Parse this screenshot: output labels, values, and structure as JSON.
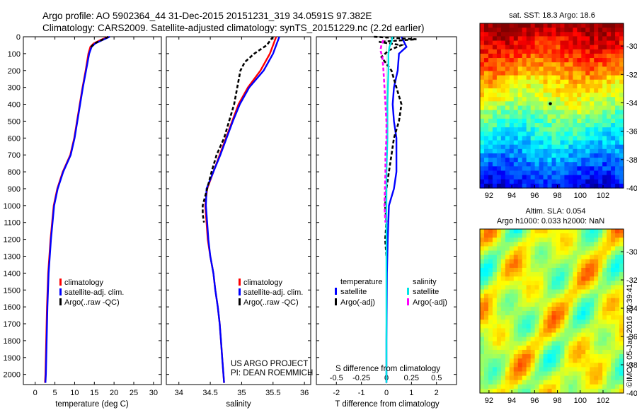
{
  "header": {
    "line1": "Argo profile: AO 5902364_44 31-Dec-2015 20151231_319 34.0591S 97.382E",
    "line2": "Climatology: CARS2009. Satellite-adjusted climatology: synTS_20151229.nc (2.2d earlier)"
  },
  "sidebar_text": "©IMOS 05-Jan-2016 20:39:41",
  "colors": {
    "climatology": "#ff0000",
    "satellite": "#0000ff",
    "argo": "#000000",
    "s_satellite": "#00e5e5",
    "s_argo": "#ff00ff"
  },
  "chart_data": [
    {
      "type": "line",
      "id": "temperature",
      "xlabel": "temperature (deg C)",
      "ylabel": "",
      "xlim": [
        -3,
        32
      ],
      "ylim": [
        2060,
        0
      ],
      "xticks": [
        0,
        5,
        10,
        15,
        20,
        25,
        30
      ],
      "yticks": [
        0,
        100,
        200,
        300,
        400,
        500,
        600,
        700,
        800,
        900,
        1000,
        1100,
        1200,
        1300,
        1400,
        1500,
        1600,
        1700,
        1800,
        1900,
        2000
      ],
      "legend": [
        "climatology",
        "satellite-adj. clim.",
        "Argo(..raw -QC)"
      ],
      "legend_position": "lower-center",
      "series": [
        {
          "name": "climatology",
          "style": "solid",
          "color": "#ff0000",
          "depth": [
            0,
            20,
            40,
            60,
            100,
            200,
            300,
            400,
            500,
            600,
            700,
            800,
            900,
            1000,
            1200,
            1400,
            1600,
            1800,
            2000,
            2050
          ],
          "values": [
            18.5,
            16.5,
            14.8,
            14.0,
            13.5,
            12.8,
            12.0,
            11.3,
            10.6,
            9.9,
            8.9,
            7.0,
            5.6,
            4.7,
            3.9,
            3.3,
            3.0,
            2.8,
            2.6,
            2.5
          ]
        },
        {
          "name": "satellite-adj. clim.",
          "style": "solid",
          "color": "#0000ff",
          "depth": [
            0,
            20,
            40,
            60,
            100,
            200,
            300,
            400,
            500,
            600,
            700,
            800,
            900,
            1000,
            1200,
            1400,
            1600,
            1800,
            2000,
            2050
          ],
          "values": [
            18.9,
            17.0,
            15.2,
            14.3,
            13.7,
            12.9,
            12.1,
            11.4,
            10.7,
            10.0,
            9.0,
            7.1,
            5.7,
            4.8,
            4.0,
            3.4,
            3.1,
            2.9,
            2.7,
            2.6
          ]
        },
        {
          "name": "Argo(..raw -QC)",
          "style": "dashed",
          "color": "#000000",
          "depth": [
            0,
            20,
            40,
            60
          ],
          "values": [
            18.6,
            16.8,
            15.0,
            14.2
          ]
        }
      ]
    },
    {
      "type": "line",
      "id": "salinity",
      "xlabel": "salinity",
      "xlim": [
        33.8,
        36.1
      ],
      "ylim": [
        2060,
        0
      ],
      "xticks": [
        34,
        34.5,
        35,
        35.5,
        36
      ],
      "legend": [
        "climatology",
        "satellite-adj. clim.",
        "Argo(..raw -QC)"
      ],
      "legend_position": "lower-right",
      "annotation": [
        "US ARGO PROJECT",
        "PI: DEAN ROEMMICH"
      ],
      "series": [
        {
          "name": "climatology",
          "style": "solid",
          "color": "#ff0000",
          "depth": [
            0,
            50,
            100,
            200,
            300,
            400,
            500,
            600,
            700,
            800,
            900,
            1000,
            1100,
            1200,
            1300,
            1400,
            1500,
            1600,
            1700,
            1800,
            1900,
            2000,
            2050
          ],
          "values": [
            35.55,
            35.5,
            35.45,
            35.3,
            35.1,
            34.95,
            34.85,
            34.75,
            34.65,
            34.55,
            34.45,
            34.42,
            34.44,
            34.46,
            34.5,
            34.55,
            34.58,
            34.62,
            34.65,
            34.67,
            34.69,
            34.71,
            34.72
          ]
        },
        {
          "name": "satellite-adj. clim.",
          "style": "solid",
          "color": "#0000ff",
          "depth": [
            0,
            50,
            100,
            200,
            300,
            400,
            500,
            600,
            700,
            800,
            900,
            1000,
            1100,
            1200,
            1300,
            1400,
            1500,
            1600,
            1700,
            1800,
            1900,
            2000,
            2050
          ],
          "values": [
            35.6,
            35.55,
            35.5,
            35.35,
            35.12,
            34.97,
            34.86,
            34.76,
            34.66,
            34.55,
            34.44,
            34.43,
            34.45,
            34.47,
            34.5,
            34.55,
            34.58,
            34.62,
            34.65,
            34.67,
            34.69,
            34.71,
            34.72
          ]
        },
        {
          "name": "Argo(..raw -QC)",
          "style": "dashed",
          "color": "#000000",
          "depth": [
            0,
            50,
            100,
            150,
            200,
            300,
            400,
            500,
            600,
            700,
            800,
            900,
            1000,
            1050,
            1100
          ],
          "values": [
            35.5,
            35.4,
            35.2,
            35.05,
            34.98,
            34.93,
            34.88,
            34.8,
            34.72,
            34.6,
            34.52,
            34.45,
            34.38,
            34.38,
            34.4
          ]
        }
      ]
    },
    {
      "type": "line",
      "id": "difference",
      "xlabel": "T difference from climatology",
      "xlabel_top": "S difference from climatology",
      "xlim": [
        -2.8,
        2.8
      ],
      "ylim": [
        2060,
        0
      ],
      "xticks": [
        -2,
        -1,
        0,
        1,
        2
      ],
      "s_tick_labels": [
        "-0.5",
        "-0.25",
        "0",
        "0.25",
        "0.5"
      ],
      "legend_headers": [
        "temperature",
        "salinity"
      ],
      "legend": [
        "satellite",
        "Argo(-adj)",
        "satellite",
        "Argo(-adj)"
      ],
      "legend_position": "lower-center",
      "series": [
        {
          "name": "T satellite",
          "style": "solid",
          "color": "#0000ff",
          "depth": [
            0,
            30,
            60,
            100,
            200,
            300,
            400,
            500,
            600,
            700,
            800,
            900,
            1000,
            1200,
            1400,
            1600,
            1800,
            2000,
            2050
          ],
          "values": [
            0.6,
            0.7,
            0.8,
            0.5,
            0.45,
            0.3,
            0.25,
            0.3,
            0.4,
            0.4,
            0.4,
            0.3,
            0.1,
            0.05,
            0.02,
            0.01,
            0.0,
            0.0,
            0.0
          ]
        },
        {
          "name": "T Argo(-adj)",
          "style": "dashed",
          "color": "#000000",
          "depth": [
            0,
            15,
            30,
            50,
            80,
            120,
            200,
            300,
            400,
            500,
            600,
            700,
            800,
            900,
            1000,
            1100,
            1200,
            1300
          ],
          "values": [
            -0.5,
            1.2,
            -0.3,
            0.6,
            0.1,
            -0.2,
            0.2,
            0.4,
            0.6,
            0.5,
            0.3,
            0.2,
            0.1,
            0.0,
            -0.05,
            0.0,
            -0.05,
            0.0
          ]
        },
        {
          "name": "S satellite",
          "style": "solid",
          "color": "#00e5e5",
          "depth": [
            0,
            30,
            60,
            100,
            200,
            300,
            400,
            500,
            600,
            800,
            1000,
            1200,
            1400,
            1600,
            1800,
            2000,
            2050
          ],
          "values": [
            0.06,
            0.05,
            0.03,
            0.02,
            0.02,
            0.015,
            0.01,
            0.01,
            0.01,
            0.0,
            0.0,
            0.0,
            0.0,
            0.0,
            0.0,
            0.0,
            0.0
          ]
        },
        {
          "name": "S Argo(-adj)",
          "style": "dashed",
          "color": "#ff00ff",
          "depth": [
            20,
            50,
            80,
            120,
            200,
            300,
            400,
            500,
            600,
            700,
            800,
            900,
            1000,
            1100
          ],
          "values": [
            -0.03,
            -0.05,
            -0.06,
            -0.04,
            -0.03,
            -0.02,
            -0.01,
            0.0,
            0.0,
            -0.01,
            -0.01,
            -0.015,
            -0.02,
            -0.01
          ]
        }
      ]
    },
    {
      "type": "heatmap",
      "id": "sst_map",
      "title": "sat. SST: 18.3 Argo: 18.6",
      "xlim": [
        91.2,
        103.8
      ],
      "ylim": [
        -40,
        -28.4
      ],
      "xticks": [
        92,
        94,
        96,
        98,
        100,
        102
      ],
      "yticks": [
        -30,
        -32,
        -34,
        -36,
        -38,
        -40
      ],
      "marker": {
        "lon": 97.382,
        "lat": -34.0591
      },
      "colormap": "jet",
      "description_hint": "warm red/orange at north, green mid-latitudes, blue south"
    },
    {
      "type": "heatmap",
      "id": "sla_map",
      "title_line1": "Altim. SLA: 0.054",
      "title_line2": "Argo h1000: 0.033 h2000: NaN",
      "xlim": [
        91.2,
        103.8
      ],
      "ylim": [
        -40,
        -28.4
      ],
      "xticks": [
        92,
        94,
        96,
        98,
        100,
        102
      ],
      "yticks": [
        -30,
        -32,
        -34,
        -36,
        -38,
        -40
      ],
      "colormap": "jet"
    }
  ]
}
